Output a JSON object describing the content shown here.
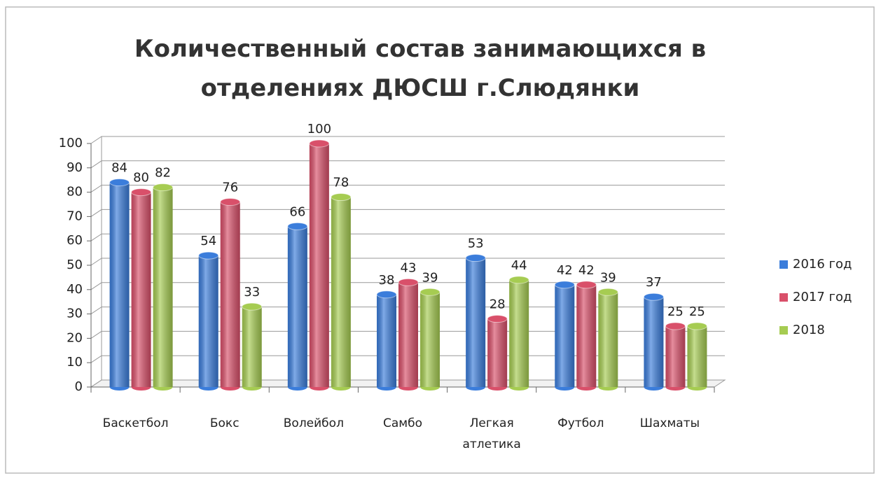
{
  "chart_data": {
    "type": "bar",
    "title": "Количественный состав занимающихся в отделениях ДЮСШ г.Слюдянки",
    "categories": [
      "Баскетбол",
      "Бокс",
      "Волейбол",
      "Самбо",
      "Легкая атлетика",
      "Футбол",
      "Шахматы"
    ],
    "series": [
      {
        "name": "2016 год",
        "color": "#3b7ddb",
        "values": [
          84,
          54,
          66,
          38,
          53,
          42,
          37
        ]
      },
      {
        "name": "2017 год",
        "color": "#d9506a",
        "values": [
          80,
          76,
          100,
          43,
          28,
          42,
          25
        ]
      },
      {
        "name": "2018",
        "color": "#a6cc52",
        "values": [
          82,
          33,
          78,
          39,
          44,
          39,
          25
        ]
      }
    ],
    "ylim": [
      0,
      100
    ],
    "yticks": [
      0,
      10,
      20,
      30,
      40,
      50,
      60,
      70,
      80,
      90,
      100
    ],
    "grid": true,
    "legend": "right"
  }
}
